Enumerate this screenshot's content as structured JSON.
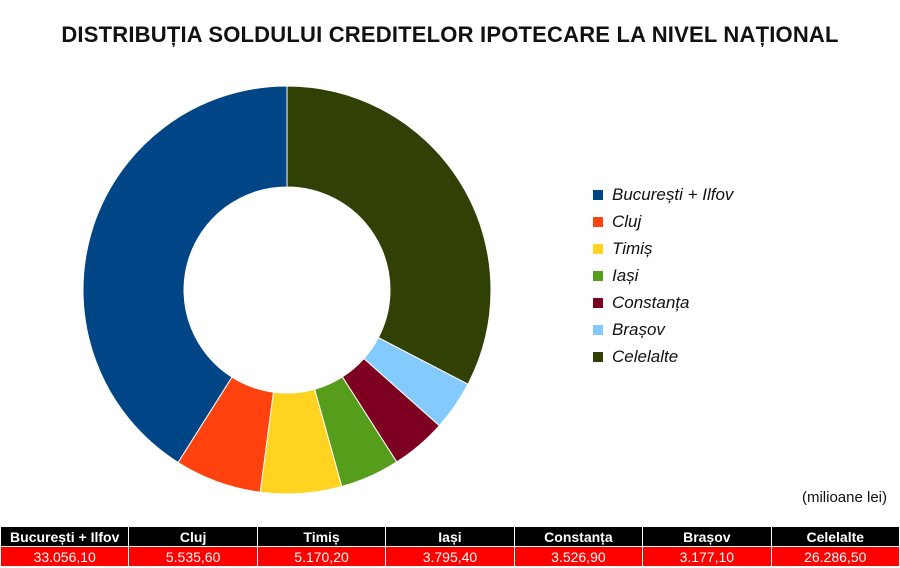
{
  "chart_data": {
    "type": "pie",
    "title": "DISTRIBUȚIA SOLDULUI CREDITELOR IPOTECARE LA NIVEL NAȚIONAL",
    "unit_note": "(milioane lei)",
    "categories": [
      "București + Ilfov",
      "Cluj",
      "Timiș",
      "Iași",
      "Constanța",
      "Brașov",
      "Celelalte"
    ],
    "values": [
      33056.1,
      5535.6,
      5170.2,
      3795.4,
      3526.9,
      3177.1,
      26286.5
    ],
    "value_labels": [
      "33.056,10",
      "5.535,60",
      "5.170,20",
      "3.795,40",
      "3.526,90",
      "3.177,10",
      "26.286,50"
    ],
    "colors": [
      "#004586",
      "#ff420e",
      "#ffd320",
      "#579d1c",
      "#7e0021",
      "#83caff",
      "#314004"
    ],
    "donut": true,
    "legend_position": "right"
  }
}
